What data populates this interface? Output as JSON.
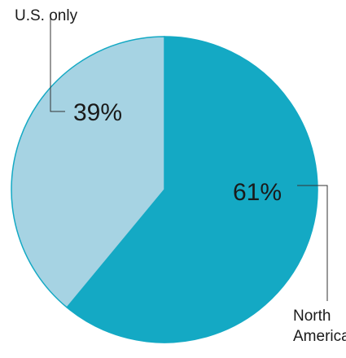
{
  "chart_data": {
    "type": "pie",
    "categories": [
      "North America",
      "U.S. only"
    ],
    "values": [
      61,
      39
    ],
    "value_labels": [
      "61%",
      "39%"
    ],
    "colors": [
      "#14a9c4",
      "#a6d3e3"
    ],
    "start_angle": 0,
    "direction": "clockwise"
  }
}
